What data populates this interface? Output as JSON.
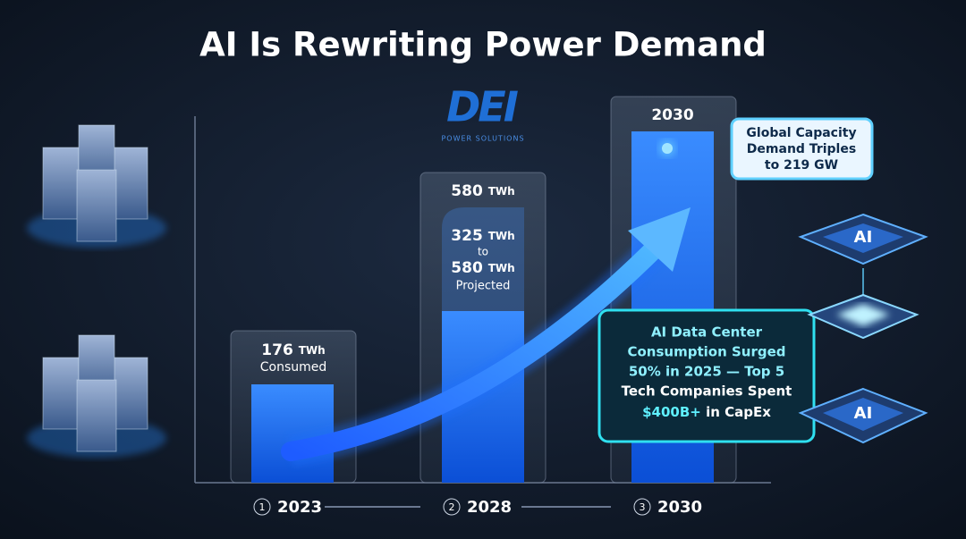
{
  "title": "AI Is Rewriting Power Demand",
  "logo": {
    "name": "DEI",
    "tagline": "POWER SOLUTIONS"
  },
  "bars": [
    {
      "value": "176",
      "unit": "TWh",
      "note": "Consumed"
    },
    {
      "value": "580",
      "unit": "TWh",
      "range_from": "325",
      "range_from_unit": "TWh",
      "range_word": "to",
      "range_to": "580",
      "range_to_unit": "TWh",
      "note": "Projected"
    },
    {
      "year": "2030"
    }
  ],
  "callouts": [
    {
      "lines": [
        "Global Capacity",
        "Demand Triples",
        "to 219 GW"
      ]
    },
    {
      "lines": [
        "AI Data Center",
        "Consumption Surged",
        "50% in 2025 — Top 5",
        "Tech Companies Spent"
      ],
      "highlight": "$400B+",
      "tail": " in CapEx"
    }
  ],
  "steps": [
    {
      "num": "1",
      "year": "2023"
    },
    {
      "num": "2",
      "year": "2028"
    },
    {
      "num": "3",
      "year": "2030"
    }
  ],
  "chip_label": "AI"
}
